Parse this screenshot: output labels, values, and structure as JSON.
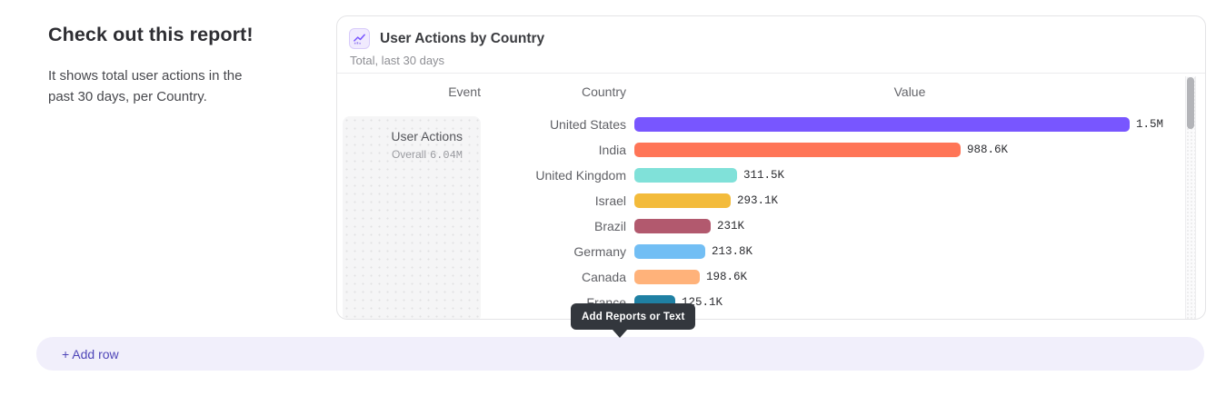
{
  "intro": {
    "title": "Check out this report!",
    "description": "It shows total user actions in the past 30 days, per Country."
  },
  "report_card": {
    "icon": "line-chart-icon",
    "title": "User Actions by Country",
    "subtitle": "Total, last 30 days",
    "columns": {
      "event": "Event",
      "country": "Country",
      "value": "Value"
    },
    "event_cell": {
      "name": "User Actions",
      "overall_label": "Overall",
      "overall_value": "6.04M"
    }
  },
  "chart_data": {
    "type": "bar",
    "orientation": "horizontal",
    "title": "User Actions by Country",
    "subtitle": "Total, last 30 days",
    "xlabel": "Value",
    "ylabel": "Country",
    "xlim": [
      0,
      1500000
    ],
    "grid": false,
    "categories": [
      "United States",
      "India",
      "United Kingdom",
      "Israel",
      "Brazil",
      "Germany",
      "Canada",
      "France"
    ],
    "values": [
      1500000,
      988600,
      311500,
      293100,
      231000,
      213800,
      198600,
      125100
    ],
    "rows": [
      {
        "country": "United States",
        "value": 1500000,
        "label": "1.5M",
        "color": "#7856ff"
      },
      {
        "country": "India",
        "value": 988600,
        "label": "988.6K",
        "color": "#ff7557"
      },
      {
        "country": "United Kingdom",
        "value": 311500,
        "label": "311.5K",
        "color": "#80e1d9"
      },
      {
        "country": "Israel",
        "value": 293100,
        "label": "293.1K",
        "color": "#f3bb3b"
      },
      {
        "country": "Brazil",
        "value": 231000,
        "label": "231K",
        "color": "#b2596e"
      },
      {
        "country": "Germany",
        "value": 213800,
        "label": "213.8K",
        "color": "#72bef4"
      },
      {
        "country": "Canada",
        "value": 198600,
        "label": "198.6K",
        "color": "#ffb27a"
      },
      {
        "country": "France",
        "value": 125100,
        "label": "125.1K",
        "color": "#1f80a3"
      }
    ]
  },
  "tooltip": {
    "text": "Add Reports or Text",
    "bg_color": "#33373d"
  },
  "add_row": {
    "label": "+ Add row",
    "accent_color": "#4f46b8"
  },
  "scrollbar": {
    "thumb_color": "#b3b4b8"
  }
}
